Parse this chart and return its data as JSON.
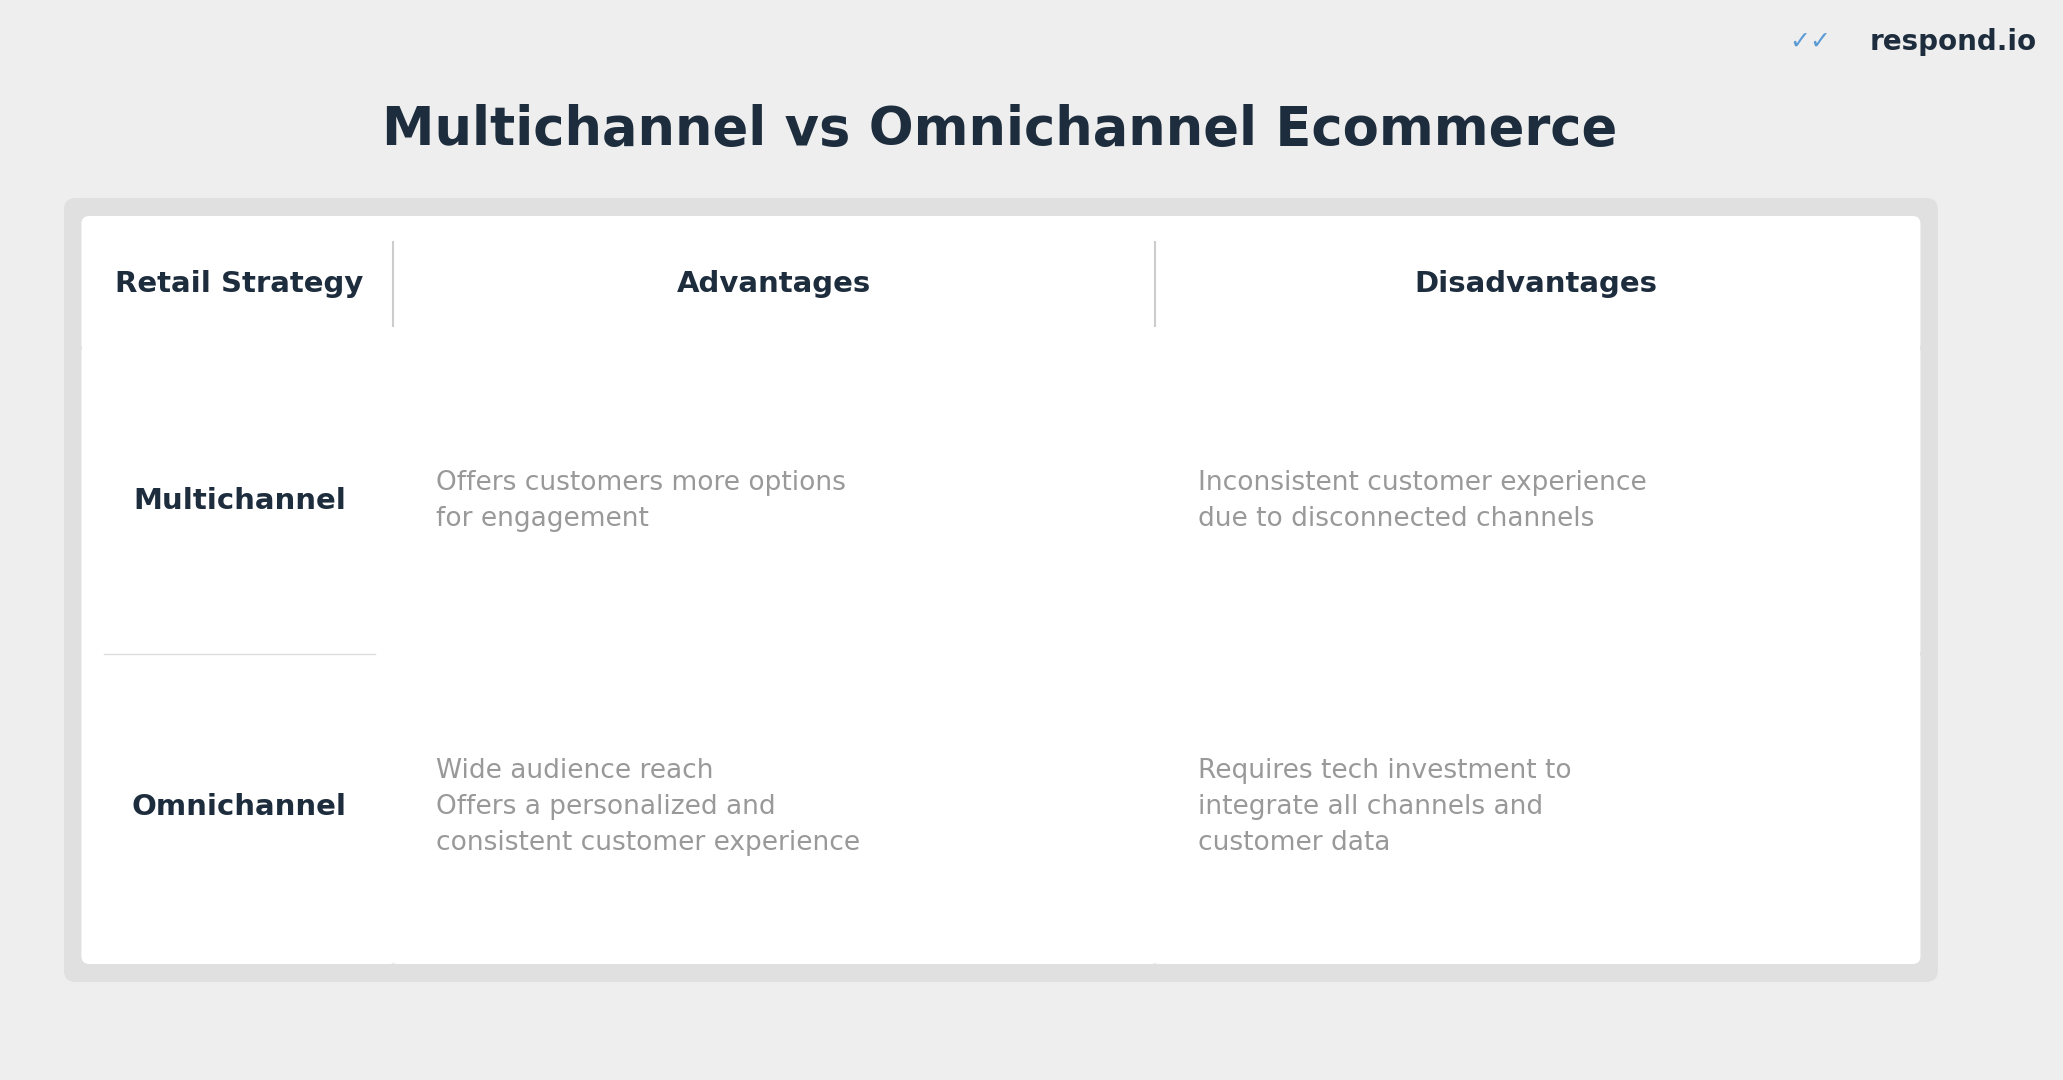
{
  "title": "Multichannel vs Omnichannel Ecommerce",
  "title_color": "#1e2d3d",
  "title_fontsize": 38,
  "bg_color": "#eeeeee",
  "outer_box_color": "#e0e0e0",
  "inner_box_color": "#ffffff",
  "header_row": [
    "Retail Strategy",
    "Advantages",
    "Disadvantages"
  ],
  "header_color": "#1e2d3d",
  "header_fontsize": 21,
  "rows": [
    {
      "label": "Multichannel",
      "advantage": "Offers customers more options\nfor engagement",
      "disadvantage": "Inconsistent customer experience\ndue to disconnected channels"
    },
    {
      "label": "Omnichannel",
      "advantage": "Wide audience reach\nOffers a personalized and\nconsistent customer experience",
      "disadvantage": "Requires tech investment to\nintegrate all channels and\ncustomer data"
    }
  ],
  "label_color": "#1e2d3d",
  "label_fontsize": 21,
  "content_color": "#999999",
  "content_fontsize": 19,
  "logo_text": "respond.io",
  "logo_color": "#1e2d3d",
  "logo_check_color": "#5b9bd5",
  "logo_fontsize": 20
}
